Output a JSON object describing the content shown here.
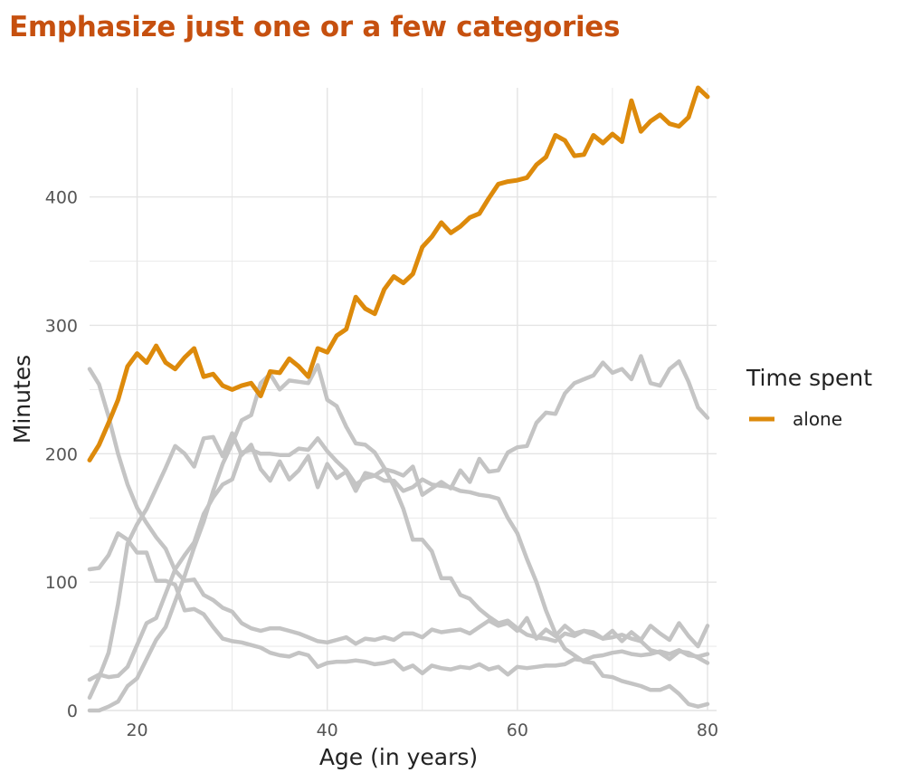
{
  "chart_data": {
    "type": "line",
    "title": "Emphasize just one or a few categories",
    "xlabel": "Age (in years)",
    "ylabel": "Minutes",
    "xlim": [
      15,
      80
    ],
    "ylim": [
      0,
      485
    ],
    "x_ticks": [
      20,
      40,
      60,
      80
    ],
    "y_ticks": [
      0,
      100,
      200,
      300,
      400
    ],
    "grid": true,
    "legend_title": "Time spent",
    "legend_position": "right",
    "highlight_color": "#dd8a0b",
    "background_color": "#c4c4c4",
    "series": [
      {
        "name": "alone",
        "highlight": true,
        "x": [
          15,
          16,
          17,
          18,
          19,
          20,
          21,
          22,
          23,
          24,
          25,
          26,
          27,
          28,
          29,
          30,
          31,
          32,
          33,
          34,
          35,
          36,
          37,
          38,
          39,
          40,
          41,
          42,
          43,
          44,
          45,
          46,
          47,
          48,
          49,
          50,
          51,
          52,
          53,
          54,
          55,
          56,
          57,
          58,
          59,
          60,
          61,
          62,
          63,
          64,
          65,
          66,
          67,
          68,
          69,
          70,
          71,
          72,
          73,
          74,
          75,
          76,
          77,
          78,
          79,
          80
        ],
        "values": [
          195,
          207,
          224,
          242,
          268,
          278,
          271,
          284,
          271,
          266,
          275,
          282,
          260,
          262,
          253,
          250,
          253,
          255,
          245,
          264,
          263,
          274,
          268,
          260,
          282,
          279,
          292,
          297,
          322,
          313,
          309,
          328,
          338,
          333,
          340,
          361,
          369,
          380,
          372,
          377,
          384,
          387,
          399,
          410,
          412,
          413,
          415,
          425,
          431,
          448,
          444,
          432,
          433,
          448,
          442,
          449,
          443,
          475,
          451,
          459,
          464,
          457,
          455,
          462,
          485,
          478
        ]
      },
      {
        "x": [
          15,
          16,
          17,
          18,
          19,
          20,
          21,
          22,
          23,
          24,
          25,
          26,
          27,
          28,
          29,
          30,
          31,
          32,
          33,
          34,
          35,
          36,
          37,
          38,
          39,
          40,
          41,
          42,
          43,
          44,
          45,
          46,
          47,
          48,
          49,
          50,
          51,
          52,
          53,
          54,
          55,
          56,
          57,
          58,
          59,
          60,
          61,
          62,
          63,
          64,
          65,
          66,
          67,
          68,
          69,
          70,
          71,
          72,
          73,
          74,
          75,
          76,
          77,
          78,
          79,
          80
        ],
        "values": [
          266,
          254,
          229,
          200,
          176,
          158,
          146,
          135,
          126,
          109,
          101,
          102,
          90,
          86,
          80,
          77,
          68,
          64,
          62,
          64,
          64,
          62,
          60,
          57,
          54,
          53,
          55,
          57,
          52,
          56,
          55,
          57,
          55,
          60,
          60,
          57,
          63,
          61,
          62,
          63,
          60,
          65,
          70,
          66,
          68,
          62,
          72,
          56,
          63,
          58,
          66,
          60,
          62,
          61,
          56,
          62,
          54,
          61,
          55,
          66,
          60,
          55,
          68,
          58,
          50,
          66
        ]
      },
      {
        "x": [
          15,
          16,
          17,
          18,
          19,
          20,
          21,
          22,
          23,
          24,
          25,
          26,
          27,
          28,
          29,
          30,
          31,
          32,
          33,
          34,
          35,
          36,
          37,
          38,
          39,
          40,
          41,
          42,
          43,
          44,
          45,
          46,
          47,
          48,
          49,
          50,
          51,
          52,
          53,
          54,
          55,
          56,
          57,
          58,
          59,
          60,
          61,
          62,
          63,
          64,
          65,
          66,
          67,
          68,
          69,
          70,
          71,
          72,
          73,
          74,
          75,
          76,
          77,
          78,
          79,
          80
        ],
        "values": [
          110,
          111,
          121,
          138,
          133,
          123,
          123,
          101,
          101,
          98,
          78,
          79,
          75,
          65,
          56,
          54,
          53,
          51,
          49,
          45,
          43,
          42,
          45,
          43,
          34,
          37,
          38,
          38,
          39,
          38,
          36,
          37,
          39,
          32,
          35,
          29,
          35,
          33,
          32,
          34,
          33,
          36,
          32,
          34,
          28,
          34,
          33,
          34,
          35,
          35,
          36,
          40,
          39,
          42,
          43,
          45,
          46,
          44,
          43,
          44,
          46,
          44,
          47,
          43,
          42,
          44
        ]
      },
      {
        "x": [
          15,
          16,
          17,
          18,
          19,
          20,
          21,
          22,
          23,
          24,
          25,
          26,
          27,
          28,
          29,
          30,
          31,
          32,
          33,
          34,
          35,
          36,
          37,
          38,
          39,
          40,
          41,
          42,
          43,
          44,
          45,
          46,
          47,
          48,
          49,
          50,
          51,
          52,
          53,
          54,
          55,
          56,
          57,
          58,
          59,
          60,
          61,
          62,
          63,
          64,
          65,
          66,
          67,
          68,
          69,
          70,
          71,
          72,
          73,
          74,
          75,
          76,
          77,
          78,
          79,
          80
        ],
        "values": [
          10,
          26,
          45,
          83,
          130,
          145,
          157,
          173,
          189,
          206,
          200,
          190,
          212,
          213,
          198,
          216,
          199,
          207,
          188,
          179,
          194,
          180,
          187,
          198,
          174,
          192,
          181,
          186,
          171,
          185,
          183,
          188,
          186,
          183,
          190,
          168,
          173,
          178,
          173,
          187,
          178,
          196,
          186,
          187,
          201,
          205,
          206,
          224,
          232,
          231,
          247,
          255,
          258,
          261,
          271,
          263,
          266,
          258,
          276,
          255,
          253,
          266,
          272,
          256,
          236,
          228
        ]
      },
      {
        "x": [
          15,
          16,
          17,
          18,
          19,
          20,
          21,
          22,
          23,
          24,
          25,
          26,
          27,
          28,
          29,
          30,
          31,
          32,
          33,
          34,
          35,
          36,
          37,
          38,
          39,
          40,
          41,
          42,
          43,
          44,
          45,
          46,
          47,
          48,
          49,
          50,
          51,
          52,
          53,
          54,
          55,
          56,
          57,
          58,
          59,
          60,
          61,
          62,
          63,
          64,
          65,
          66,
          67,
          68,
          69,
          70,
          71,
          72,
          73,
          74,
          75,
          76,
          77,
          78,
          79,
          80
        ],
        "values": [
          24,
          28,
          26,
          27,
          34,
          51,
          68,
          72,
          91,
          110,
          121,
          131,
          153,
          166,
          176,
          180,
          201,
          203,
          200,
          200,
          199,
          199,
          204,
          203,
          212,
          202,
          194,
          187,
          176,
          181,
          183,
          179,
          179,
          171,
          174,
          180,
          176,
          175,
          174,
          171,
          170,
          168,
          167,
          165,
          150,
          138,
          118,
          100,
          78,
          60,
          48,
          43,
          38,
          37,
          27,
          26,
          23,
          21,
          19,
          16,
          16,
          19,
          13,
          5,
          3,
          5
        ]
      },
      {
        "x": [
          15,
          16,
          17,
          18,
          19,
          20,
          21,
          22,
          23,
          24,
          25,
          26,
          27,
          28,
          29,
          30,
          31,
          32,
          33,
          34,
          35,
          36,
          37,
          38,
          39,
          40,
          41,
          42,
          43,
          44,
          45,
          46,
          47,
          48,
          49,
          50,
          51,
          52,
          53,
          54,
          55,
          56,
          57,
          58,
          59,
          60,
          61,
          62,
          63,
          64,
          65,
          66,
          67,
          68,
          69,
          70,
          71,
          72,
          73,
          74,
          75,
          76,
          77,
          78,
          79,
          80
        ],
        "values": [
          0,
          0,
          3,
          7,
          19,
          25,
          40,
          55,
          65,
          85,
          105,
          127,
          147,
          171,
          192,
          208,
          226,
          230,
          255,
          262,
          250,
          257,
          256,
          255,
          269,
          242,
          237,
          221,
          208,
          207,
          201,
          189,
          175,
          157,
          133,
          133,
          124,
          103,
          103,
          90,
          87,
          79,
          73,
          68,
          70,
          64,
          59,
          57,
          56,
          54,
          60,
          58,
          62,
          59,
          56,
          57,
          59,
          56,
          54,
          47,
          45,
          40,
          46,
          45,
          41,
          37
        ]
      }
    ]
  }
}
